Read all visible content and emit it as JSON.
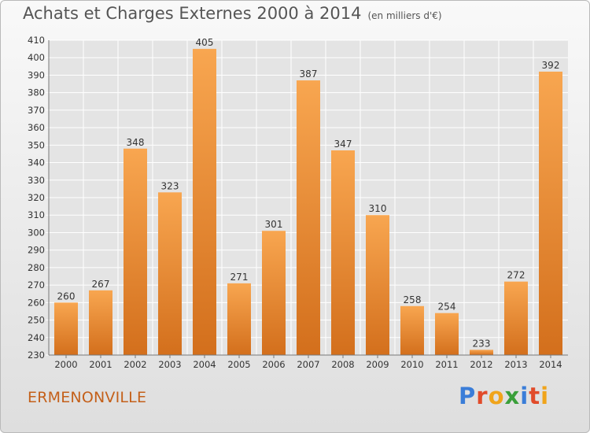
{
  "title": "Achats et Charges Externes 2000 à 2014",
  "unit": "(en milliers d'€)",
  "town": "ERMENONVILLE",
  "brand": "Proxiti",
  "colors": {
    "bar_light": "#f8a650",
    "bar_dark": "#d36f1c",
    "town": "#c4601a"
  },
  "chart_data": {
    "type": "bar",
    "title": "Achats et Charges Externes 2000 à 2014",
    "subtitle": "(en milliers d'€)",
    "categories": [
      "2000",
      "2001",
      "2002",
      "2003",
      "2004",
      "2005",
      "2006",
      "2007",
      "2008",
      "2009",
      "2010",
      "2011",
      "2012",
      "2013",
      "2014"
    ],
    "values": [
      260,
      267,
      348,
      323,
      405,
      271,
      301,
      387,
      347,
      310,
      258,
      254,
      233,
      272,
      392
    ],
    "ylim": [
      230,
      410
    ],
    "yticks": [
      230,
      240,
      250,
      260,
      270,
      280,
      290,
      300,
      310,
      320,
      330,
      340,
      350,
      360,
      370,
      380,
      390,
      400,
      410
    ],
    "xlabel": "",
    "ylabel": "",
    "grid": true,
    "data_labels": true
  }
}
